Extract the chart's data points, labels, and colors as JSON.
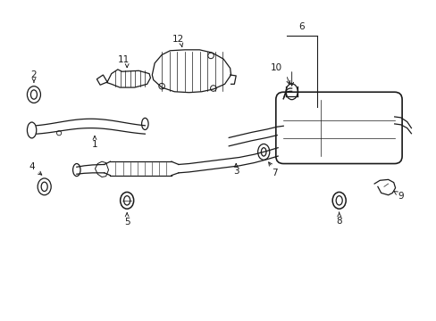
{
  "background_color": "#ffffff",
  "line_color": "#1a1a1a",
  "figure_width": 4.89,
  "figure_height": 3.6,
  "dpi": 100,
  "xlim": [
    0,
    10
  ],
  "ylim": [
    0,
    7.35
  ]
}
